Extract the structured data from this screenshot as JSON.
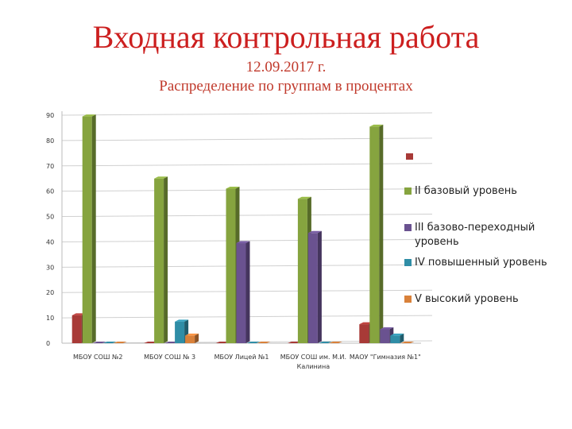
{
  "title": "Входная контрольная работа",
  "subtitle1": "12.09.2017 г.",
  "subtitle2": "Распределение по группам в процентах",
  "chart_data": {
    "type": "bar",
    "categories": [
      "МБОУ СОШ №2",
      "МБОУ СОШ № 3",
      "МБОУ Лицей №1",
      "МБОУ СОШ им. М.И. Калинина",
      "МАОУ \"Гимназия №1\""
    ],
    "y_ticks": [
      0,
      10,
      20,
      30,
      40,
      50,
      60,
      70,
      80,
      90
    ],
    "ylim": [
      0,
      90
    ],
    "grid": true,
    "legend_position": "right",
    "series": [
      {
        "name": "",
        "color": "#a83a37",
        "values": [
          11,
          0,
          0,
          0,
          7.5
        ]
      },
      {
        "name": "II базовый уровень",
        "color": "#86a43f",
        "values": [
          89.5,
          65,
          61,
          57,
          85.5
        ]
      },
      {
        "name": "III базово-переходный уровень",
        "color": "#6a5290",
        "values": [
          0,
          0,
          39.5,
          43.5,
          5.5
        ]
      },
      {
        "name": "IV повышенный уровень",
        "color": "#2f8da6",
        "values": [
          0,
          8.5,
          0,
          0,
          3
        ]
      },
      {
        "name": "V высокий уровень",
        "color": "#d9813a",
        "values": [
          0,
          3,
          0,
          0,
          0
        ]
      }
    ]
  }
}
